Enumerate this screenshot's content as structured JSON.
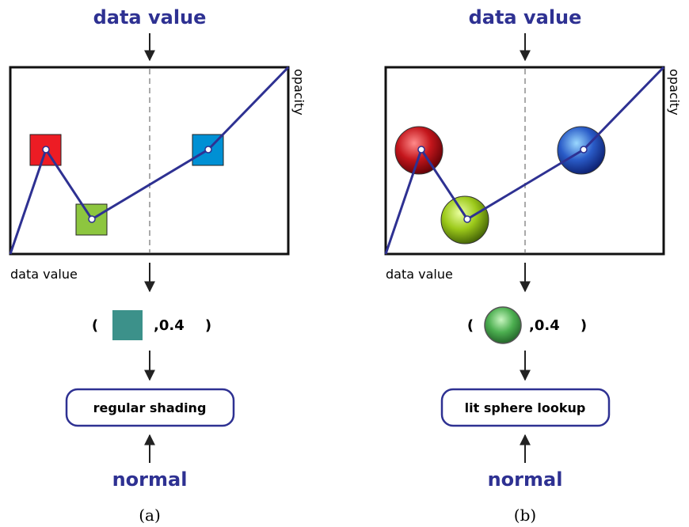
{
  "panels": [
    {
      "input_label": "data value",
      "x_axis_label": "data value",
      "y_axis_label": "opacity",
      "tuple_open": "(",
      "tuple_value": ",0.4",
      "tuple_close": ")",
      "process": "regular shading",
      "normal_label": "normal",
      "caption": "(a)"
    },
    {
      "input_label": "data value",
      "x_axis_label": "data value",
      "y_axis_label": "opacity",
      "tuple_open": "(",
      "tuple_value": ",0.4",
      "tuple_close": ")",
      "process": "lit sphere lookup",
      "normal_label": "normal",
      "caption": "(b)"
    }
  ]
}
